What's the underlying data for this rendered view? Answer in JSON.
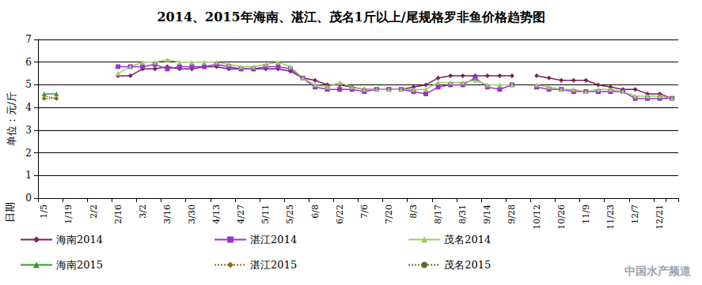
{
  "chart_data": {
    "type": "line",
    "title": "2014、2015年海南、湛江、茂名1斤以上/尾规格罗非鱼价格趋势图",
    "x_label": "日期",
    "y_label": "单位：元/斤",
    "annotations": [
      "中国水产频道"
    ],
    "categories": [
      "1/5",
      null,
      "1/19",
      null,
      "2/2",
      null,
      "2/16",
      null,
      "3/2",
      null,
      "3/16",
      null,
      "3/30",
      null,
      "4/13",
      null,
      "4/27",
      null,
      "5/11",
      null,
      "5/25",
      null,
      "6/8",
      null,
      "6/22",
      null,
      "7/6",
      null,
      "7/20",
      null,
      "8/3",
      null,
      "8/17",
      null,
      "8/31",
      null,
      "9/14",
      null,
      "9/28",
      null,
      "10/12",
      null,
      "10/26",
      null,
      "11/9",
      null,
      "11/23",
      null,
      "12/7",
      null,
      "12/21",
      null
    ],
    "ylim": [
      0,
      7
    ],
    "yticks": [
      0,
      1,
      2,
      3,
      4,
      5,
      6,
      7
    ],
    "grid": true,
    "legend": "bottom",
    "series": [
      {
        "name": "海南2014",
        "color": "#7b1f5c",
        "marker": "diamond",
        "line_style": "solid",
        "values": [
          null,
          null,
          null,
          null,
          null,
          null,
          5.4,
          5.4,
          5.7,
          5.7,
          5.8,
          5.7,
          5.7,
          5.8,
          5.8,
          5.7,
          5.7,
          5.7,
          5.7,
          5.7,
          5.6,
          5.3,
          5.2,
          5.0,
          5.0,
          4.9,
          4.8,
          4.8,
          4.8,
          4.8,
          4.9,
          5.0,
          5.3,
          5.4,
          5.4,
          5.4,
          5.4,
          5.4,
          5.4,
          null,
          5.4,
          5.3,
          5.2,
          5.2,
          5.2,
          5.0,
          4.9,
          4.8,
          4.8,
          4.6,
          4.6,
          4.4
        ]
      },
      {
        "name": "湛江2014",
        "color": "#9933cc",
        "marker": "square",
        "line_style": "solid",
        "values": [
          null,
          null,
          null,
          null,
          null,
          null,
          5.8,
          5.8,
          5.8,
          5.9,
          5.7,
          5.8,
          5.8,
          5.8,
          5.9,
          5.8,
          5.7,
          5.7,
          5.8,
          5.8,
          5.7,
          5.3,
          4.9,
          4.8,
          4.8,
          4.8,
          4.7,
          4.8,
          4.8,
          4.8,
          4.7,
          4.6,
          4.9,
          5.0,
          5.0,
          5.3,
          4.9,
          4.8,
          5.0,
          null,
          4.9,
          4.8,
          4.8,
          4.7,
          4.7,
          4.7,
          4.7,
          4.7,
          4.4,
          4.4,
          4.4,
          4.4
        ]
      },
      {
        "name": "茂名2014",
        "color": "#99cc66",
        "marker": "triangle",
        "line_style": "solid",
        "values": [
          null,
          null,
          null,
          null,
          null,
          null,
          5.5,
          5.8,
          6.0,
          6.0,
          6.1,
          6.0,
          6.0,
          6.0,
          6.0,
          5.9,
          5.8,
          5.8,
          5.9,
          6.0,
          5.8,
          5.3,
          5.0,
          4.9,
          5.1,
          4.9,
          4.8,
          4.8,
          4.8,
          4.8,
          4.8,
          4.8,
          5.1,
          5.1,
          5.1,
          5.2,
          5.0,
          5.0,
          5.0,
          null,
          5.0,
          4.9,
          4.8,
          4.8,
          4.7,
          4.8,
          4.8,
          4.7,
          4.5,
          4.5,
          4.5,
          4.4
        ]
      },
      {
        "name": "海南2015",
        "color": "#339933",
        "marker": "triangle",
        "line_style": "solid",
        "values": [
          4.6,
          4.6,
          null,
          null,
          null,
          null,
          null,
          null,
          null,
          null,
          null,
          null,
          null,
          null,
          null,
          null,
          null,
          null,
          null,
          null,
          null,
          null,
          null,
          null,
          null,
          null,
          null,
          null,
          null,
          null,
          null,
          null,
          null,
          null,
          null,
          null,
          null,
          null,
          null,
          null,
          null,
          null,
          null,
          null,
          null,
          null,
          null,
          null,
          null,
          null,
          null,
          null
        ]
      },
      {
        "name": "湛江2015",
        "color": "#8b6914",
        "marker": "diamond",
        "line_style": "dotted",
        "values": [
          4.4,
          4.4,
          null,
          null,
          null,
          null,
          null,
          null,
          null,
          null,
          null,
          null,
          null,
          null,
          null,
          null,
          null,
          null,
          null,
          null,
          null,
          null,
          null,
          null,
          null,
          null,
          null,
          null,
          null,
          null,
          null,
          null,
          null,
          null,
          null,
          null,
          null,
          null,
          null,
          null,
          null,
          null,
          null,
          null,
          null,
          null,
          null,
          null,
          null,
          null,
          null,
          null
        ]
      },
      {
        "name": "茂名2015",
        "color": "#666633",
        "marker": "none",
        "line_style": "dotted",
        "values": [
          4.5,
          4.4,
          null,
          null,
          null,
          null,
          null,
          null,
          null,
          null,
          null,
          null,
          null,
          null,
          null,
          null,
          null,
          null,
          null,
          null,
          null,
          null,
          null,
          null,
          null,
          null,
          null,
          null,
          null,
          null,
          null,
          null,
          null,
          null,
          null,
          null,
          null,
          null,
          null,
          null,
          null,
          null,
          null,
          null,
          null,
          null,
          null,
          null,
          null,
          null,
          null,
          null
        ]
      }
    ]
  }
}
